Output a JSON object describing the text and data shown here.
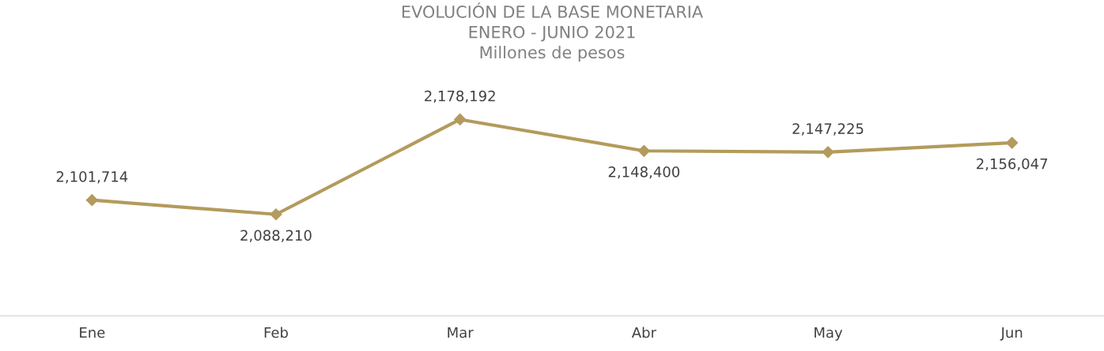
{
  "chart_data": {
    "type": "line",
    "title": "EVOLUCIÓN DE LA BASE MONETARIA\nENERO - JUNIO 2021\nMillones de pesos",
    "categories": [
      "Ene",
      "Feb",
      "Mar",
      "Abr",
      "May",
      "Jun"
    ],
    "series": [
      {
        "color": "#b39b5c",
        "values": [
          2101714,
          2088210,
          2178192,
          2148400,
          2147225,
          2156047
        ],
        "value_labels": [
          "2,101,714",
          "2,088,210",
          "2,178,192",
          "2,148,400",
          "2,147,225",
          "2,156,047"
        ]
      }
    ],
    "marker": "diamond",
    "line_style": "solid",
    "grid": false,
    "legend": false,
    "tick_labels": "x"
  }
}
